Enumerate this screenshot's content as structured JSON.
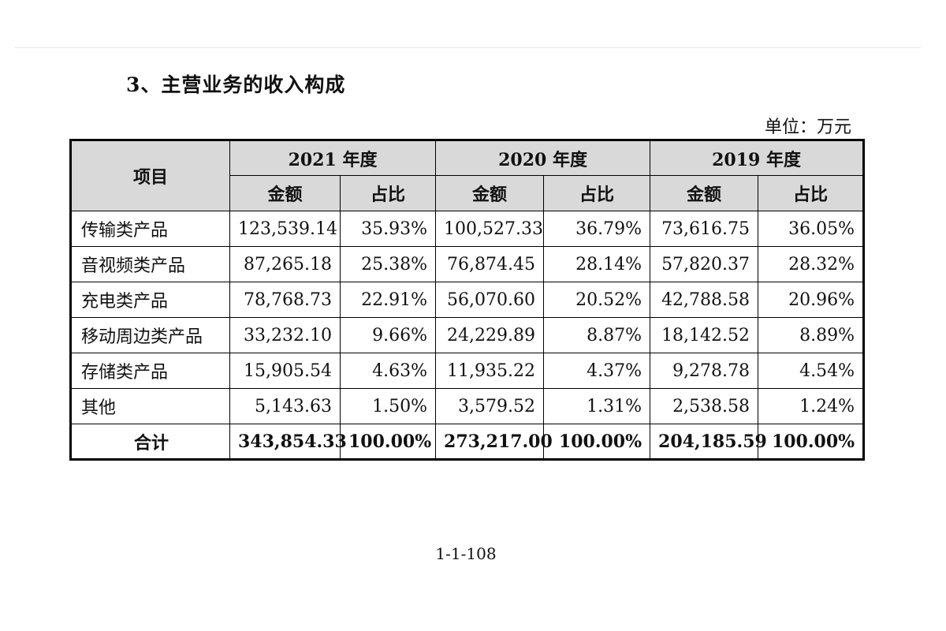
{
  "heading": "3、主营业务的收入构成",
  "unit": "单位：万元",
  "table": {
    "item_header": "项目",
    "year_headers": [
      "2021 年度",
      "2020 年度",
      "2019 年度"
    ],
    "sub_headers": [
      "金额",
      "占比",
      "金额",
      "占比",
      "金额",
      "占比"
    ],
    "rows": [
      {
        "name": "传输类产品",
        "values": [
          "123,539.14",
          "35.93%",
          "100,527.33",
          "36.79%",
          "73,616.75",
          "36.05%"
        ]
      },
      {
        "name": "音视频类产品",
        "values": [
          "87,265.18",
          "25.38%",
          "76,874.45",
          "28.14%",
          "57,820.37",
          "28.32%"
        ]
      },
      {
        "name": "充电类产品",
        "values": [
          "78,768.73",
          "22.91%",
          "56,070.60",
          "20.52%",
          "42,788.58",
          "20.96%"
        ]
      },
      {
        "name": "移动周边类产品",
        "values": [
          "33,232.10",
          "9.66%",
          "24,229.89",
          "8.87%",
          "18,142.52",
          "8.89%"
        ]
      },
      {
        "name": "存储类产品",
        "values": [
          "15,905.54",
          "4.63%",
          "11,935.22",
          "4.37%",
          "9,278.78",
          "4.54%"
        ]
      },
      {
        "name": "其他",
        "values": [
          "5,143.63",
          "1.50%",
          "3,579.52",
          "1.31%",
          "2,538.58",
          "1.24%"
        ]
      }
    ],
    "total": {
      "name": "合计",
      "values": [
        "343,854.33",
        "100.00%",
        "273,217.00",
        "100.00%",
        "204,185.59",
        "100.00%"
      ]
    }
  },
  "page_number": "1-1-108"
}
